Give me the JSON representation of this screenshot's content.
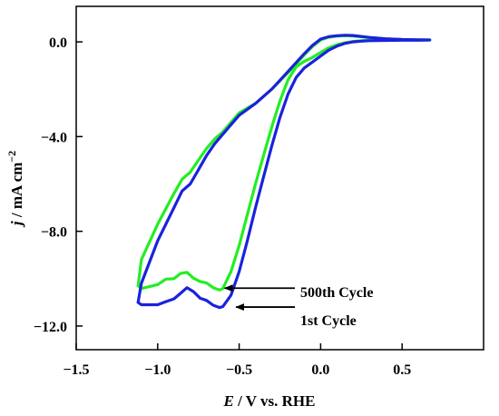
{
  "chart_data": {
    "type": "line",
    "xlabel": "E / V vs. RHE",
    "xlabel_italic_part": "E",
    "xlabel_rest": " / V vs. RHE",
    "ylabel_italic_part": "j",
    "ylabel_rest": " / mA cm",
    "ylabel_superscript": "−2",
    "xlim": [
      -1.5,
      1.0
    ],
    "ylim": [
      -13.0,
      1.5
    ],
    "x_ticks": [
      -1.5,
      -1.0,
      -0.5,
      0.0,
      0.5
    ],
    "x_tick_labels": [
      "−1.5",
      "−1.0",
      "−0.5",
      "0.0",
      "0.5"
    ],
    "y_ticks": [
      0.0,
      -4.0,
      -8.0,
      -12.0
    ],
    "y_tick_labels": [
      "0.0",
      "−4.0",
      "−8.0",
      "−12.0"
    ],
    "grid": false,
    "colors": {
      "cycle500": "#22ee22",
      "cycle1": "#1a22dd"
    },
    "annotations": [
      {
        "text": "500th Cycle",
        "arrow_to": [
          -0.6,
          -10.4
        ]
      },
      {
        "text": "1st Cycle",
        "arrow_to": [
          -0.53,
          -11.2
        ]
      }
    ],
    "series": [
      {
        "name": "500th Cycle",
        "color": "#22ee22",
        "x": [
          -1.12,
          -1.1,
          -1.0,
          -0.95,
          -0.9,
          -0.86,
          -0.82,
          -0.78,
          -0.74,
          -0.7,
          -0.66,
          -0.62,
          -0.6,
          -0.55,
          -0.5,
          -0.45,
          -0.4,
          -0.35,
          -0.3,
          -0.25,
          -0.2,
          -0.15,
          -0.1,
          -0.05,
          0.0,
          0.05,
          0.1,
          0.15,
          0.2,
          0.25,
          0.3,
          0.4,
          0.5,
          0.6,
          0.67,
          0.6,
          0.5,
          0.4,
          0.3,
          0.2,
          0.15,
          0.1,
          0.05,
          0.0,
          -0.05,
          -0.1,
          -0.2,
          -0.3,
          -0.4,
          -0.5,
          -0.55,
          -0.6,
          -0.65,
          -0.7,
          -0.75,
          -0.8,
          -0.85,
          -0.9,
          -1.0,
          -1.1,
          -1.12
        ],
        "y": [
          -10.3,
          -10.42,
          -10.25,
          -10.02,
          -10.0,
          -9.78,
          -9.73,
          -9.98,
          -10.12,
          -10.18,
          -10.38,
          -10.48,
          -10.42,
          -9.7,
          -8.6,
          -7.3,
          -6.0,
          -4.8,
          -3.6,
          -2.5,
          -1.6,
          -1.05,
          -0.82,
          -0.66,
          -0.45,
          -0.25,
          -0.12,
          -0.04,
          0.02,
          0.05,
          0.07,
          0.08,
          0.08,
          0.08,
          0.08,
          0.09,
          0.1,
          0.13,
          0.18,
          0.25,
          0.26,
          0.24,
          0.2,
          0.08,
          -0.2,
          -0.55,
          -1.3,
          -2.0,
          -2.6,
          -3.0,
          -3.4,
          -3.8,
          -4.1,
          -4.5,
          -5.0,
          -5.5,
          -5.8,
          -6.4,
          -7.7,
          -9.2,
          -10.3
        ]
      },
      {
        "name": "1st Cycle",
        "color": "#1a22dd",
        "x": [
          -1.12,
          -1.1,
          -1.0,
          -0.95,
          -0.9,
          -0.86,
          -0.82,
          -0.78,
          -0.74,
          -0.7,
          -0.66,
          -0.62,
          -0.6,
          -0.55,
          -0.5,
          -0.45,
          -0.4,
          -0.35,
          -0.3,
          -0.25,
          -0.2,
          -0.15,
          -0.1,
          -0.05,
          0.0,
          0.05,
          0.1,
          0.15,
          0.2,
          0.25,
          0.3,
          0.4,
          0.5,
          0.6,
          0.67,
          0.6,
          0.5,
          0.4,
          0.3,
          0.2,
          0.15,
          0.1,
          0.05,
          0.0,
          -0.05,
          -0.1,
          -0.2,
          -0.3,
          -0.4,
          -0.5,
          -0.55,
          -0.6,
          -0.65,
          -0.7,
          -0.75,
          -0.8,
          -0.85,
          -0.9,
          -1.0,
          -1.1,
          -1.12
        ],
        "y": [
          -11.0,
          -11.1,
          -11.1,
          -10.97,
          -10.85,
          -10.62,
          -10.38,
          -10.55,
          -10.82,
          -10.92,
          -11.12,
          -11.22,
          -11.18,
          -10.7,
          -9.7,
          -8.4,
          -7.0,
          -5.7,
          -4.4,
          -3.2,
          -2.2,
          -1.5,
          -1.1,
          -0.85,
          -0.6,
          -0.35,
          -0.18,
          -0.06,
          0.0,
          0.03,
          0.05,
          0.06,
          0.07,
          0.07,
          0.08,
          0.09,
          0.1,
          0.13,
          0.19,
          0.27,
          0.28,
          0.26,
          0.22,
          0.12,
          -0.15,
          -0.5,
          -1.25,
          -2.0,
          -2.6,
          -3.1,
          -3.5,
          -3.9,
          -4.3,
          -4.8,
          -5.4,
          -6.0,
          -6.3,
          -7.0,
          -8.4,
          -10.2,
          -11.0
        ]
      }
    ]
  }
}
